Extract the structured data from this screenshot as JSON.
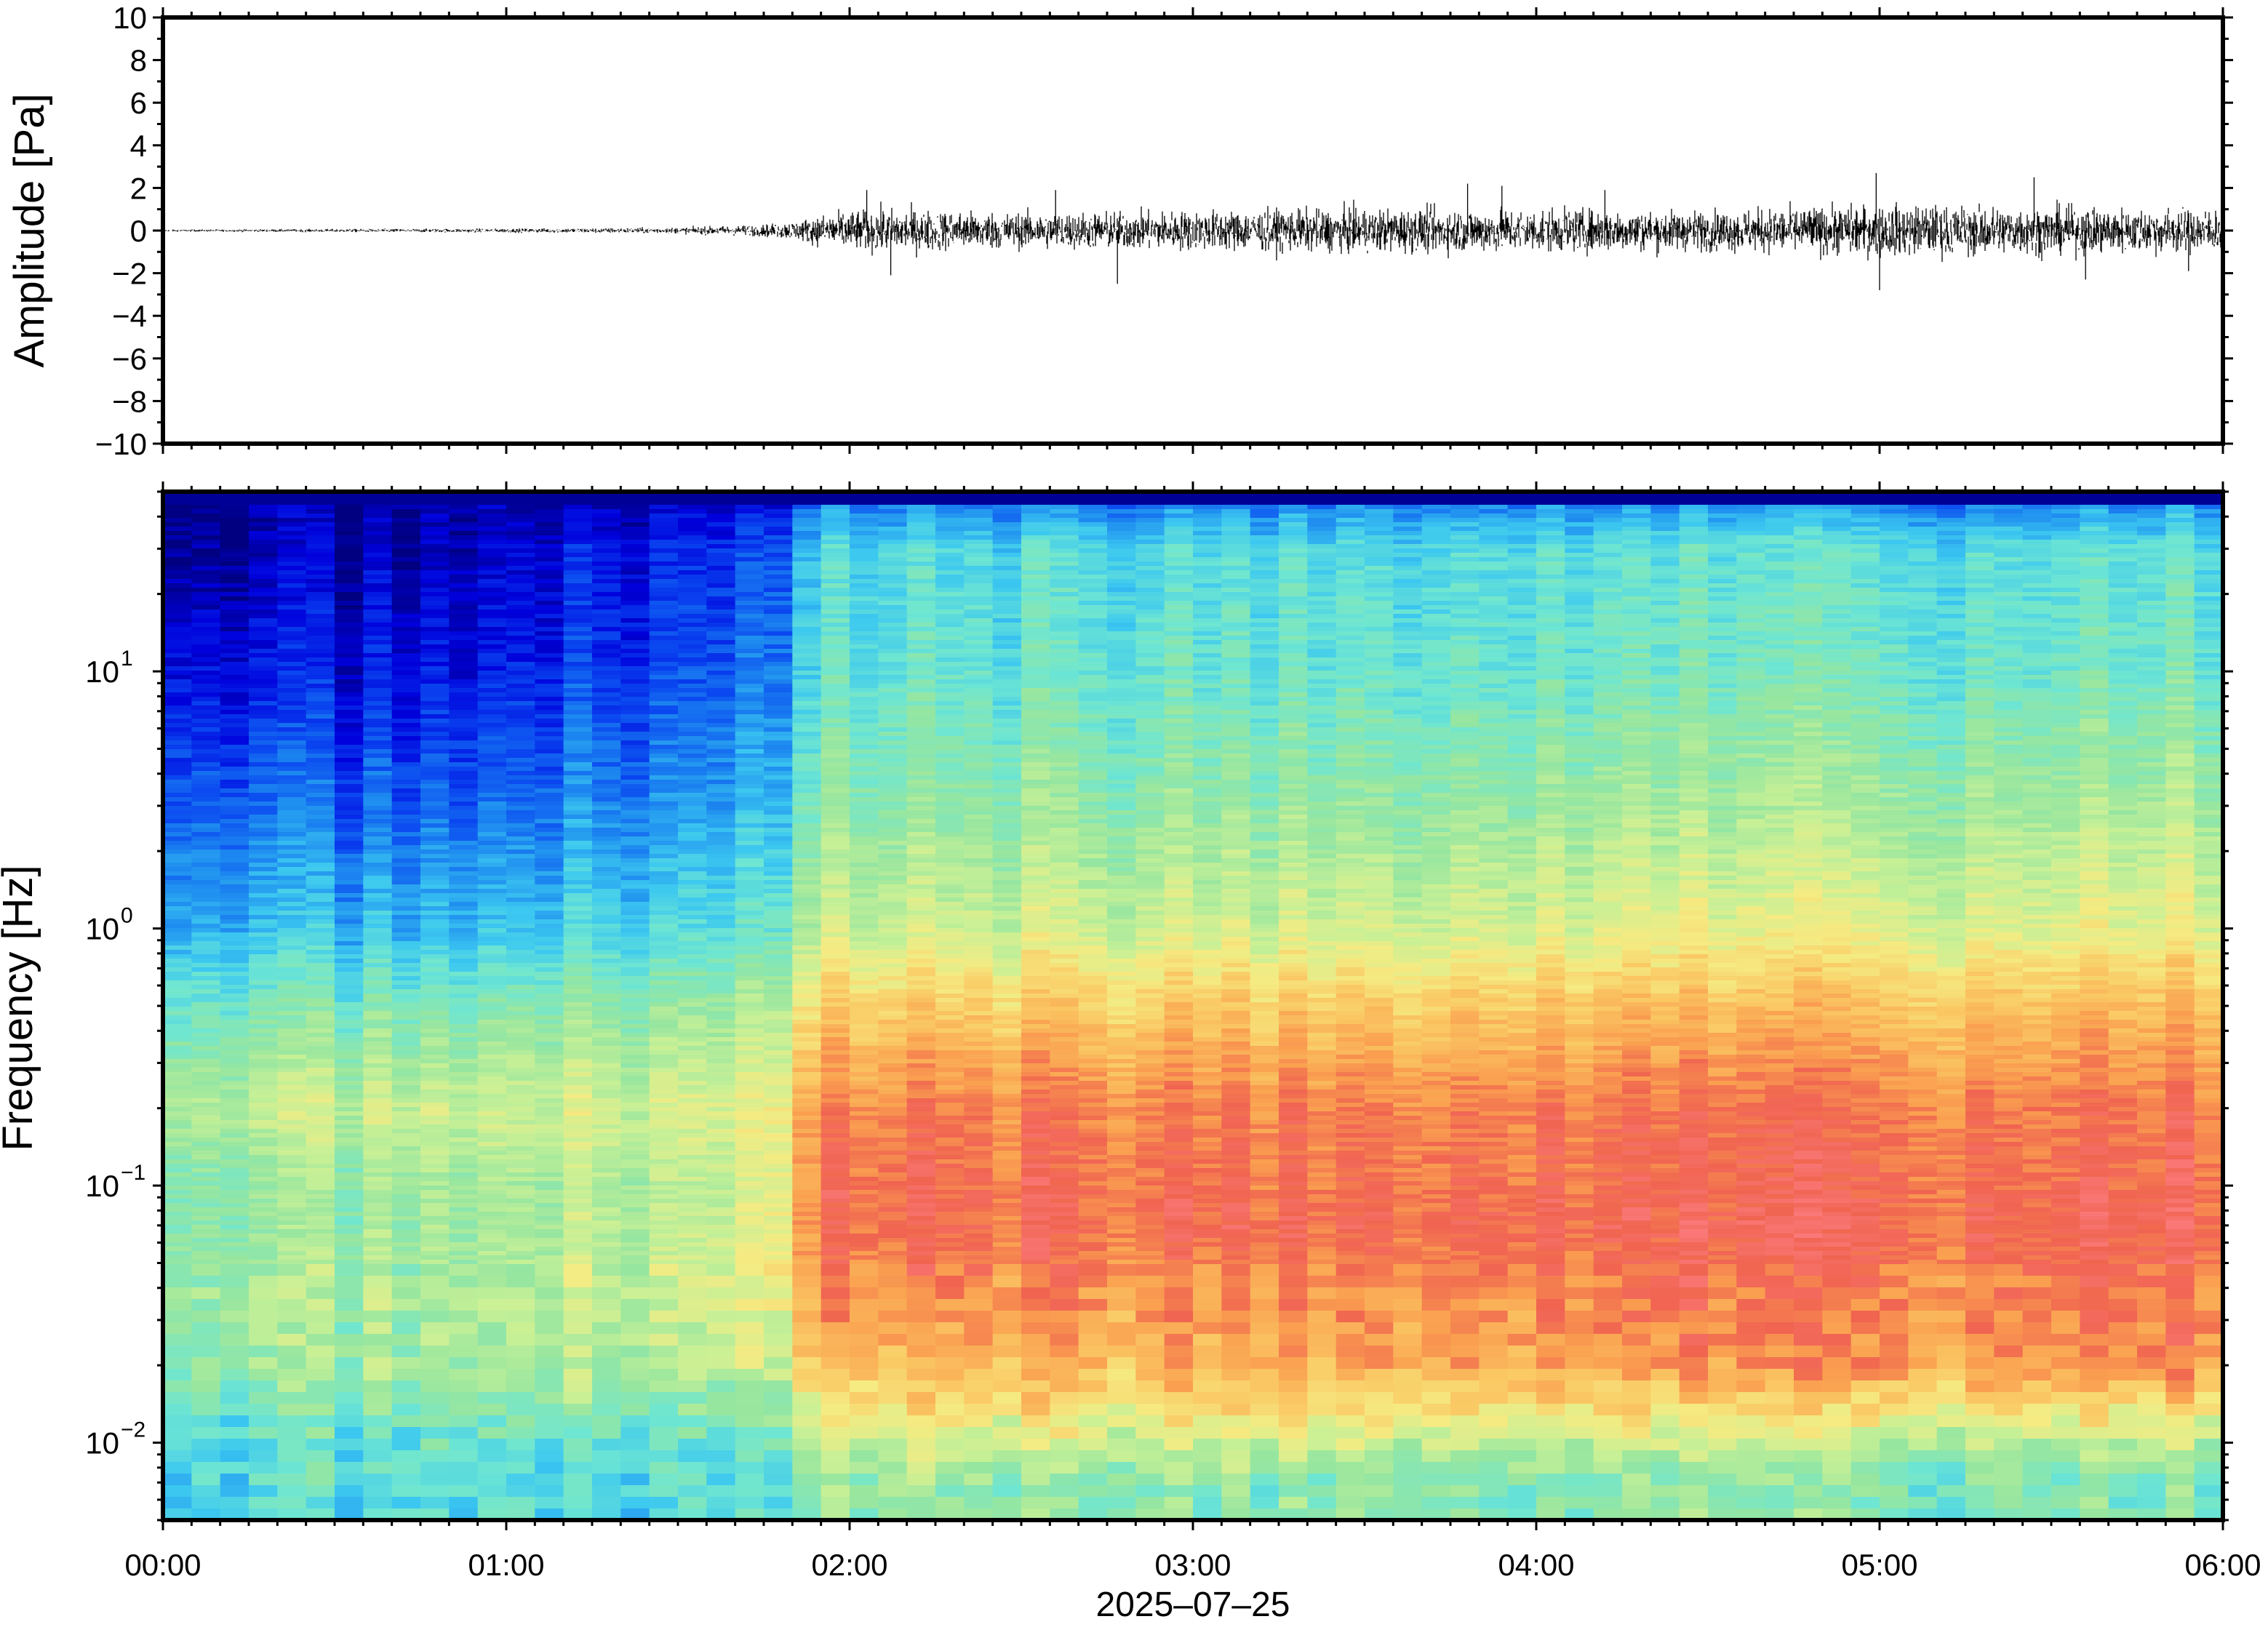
{
  "chart_data": [
    {
      "type": "line",
      "ylabel": "Amplitude [Pa]",
      "ylim": [
        -10,
        10
      ],
      "yticks": [
        10,
        8,
        6,
        4,
        2,
        0,
        -2,
        -4,
        -6,
        -8,
        -10
      ],
      "ytick_labels": [
        "10",
        "8",
        "6",
        "4",
        "2",
        "0",
        "−2",
        "−4",
        "−6",
        "−8",
        "−10"
      ],
      "xlim_hours": [
        0,
        6
      ],
      "line_color": "#000000",
      "envelope": {
        "hours": [
          0.0,
          0.5,
          1.0,
          1.5,
          1.75,
          1.85,
          1.95,
          2.1,
          2.5,
          3.0,
          3.5,
          4.0,
          4.5,
          5.0,
          5.5,
          6.0
        ],
        "amplitude": [
          0.05,
          0.08,
          0.1,
          0.15,
          0.3,
          0.5,
          0.9,
          1.1,
          0.9,
          1.0,
          1.1,
          1.1,
          1.0,
          1.3,
          1.2,
          1.1
        ]
      },
      "peaks": [
        {
          "hour": 2.05,
          "value": 1.9
        },
        {
          "hour": 2.12,
          "value": -2.1
        },
        {
          "hour": 2.6,
          "value": 1.9
        },
        {
          "hour": 2.78,
          "value": -2.5
        },
        {
          "hour": 3.8,
          "value": 2.2
        },
        {
          "hour": 3.9,
          "value": 2.1
        },
        {
          "hour": 4.2,
          "value": 1.9
        },
        {
          "hour": 5.0,
          "value": -2.8
        },
        {
          "hour": 4.99,
          "value": 2.7
        },
        {
          "hour": 5.45,
          "value": 2.5
        },
        {
          "hour": 5.6,
          "value": -2.3
        },
        {
          "hour": 5.9,
          "value": -1.9
        }
      ]
    },
    {
      "type": "heatmap",
      "ylabel": "Frequency [Hz]",
      "xlabel": "2025–07–25",
      "yscale": "log",
      "ylim_hz": [
        0.005,
        50
      ],
      "yticks_hz": [
        0.01,
        0.1,
        1,
        10
      ],
      "ytick_labels": [
        {
          "base": "10",
          "exp": "−2"
        },
        {
          "base": "10",
          "exp": "−1"
        },
        {
          "base": "10",
          "exp": "0"
        },
        {
          "base": "10",
          "exp": "1"
        }
      ],
      "xticks_hours": [
        0,
        1,
        2,
        3,
        4,
        5,
        6
      ],
      "xtick_labels": [
        "00:00",
        "01:00",
        "02:00",
        "03:00",
        "04:00",
        "05:00",
        "06:00"
      ],
      "colormap": [
        "#000080",
        "#0000dc",
        "#0a46f0",
        "#1e8cf0",
        "#3cc8f0",
        "#6ee6d2",
        "#96e6a0",
        "#c8f096",
        "#f5eb82",
        "#fac864",
        "#faa050",
        "#f06450",
        "#fa7878"
      ],
      "n_time_columns": 72,
      "profile_hours": [
        0,
        0.75,
        1.75,
        1.9,
        3.0,
        6.0
      ],
      "profile_freqs_hz": [
        0.007,
        0.01,
        0.02,
        0.04,
        0.07,
        0.1,
        0.2,
        0.5,
        1,
        3,
        10,
        30,
        45
      ],
      "profile_levels": [
        [
          0.4,
          0.4,
          0.52,
          0.54,
          0.52,
          0.5,
          0.58,
          0.46,
          0.34,
          0.24,
          0.14,
          0.06,
          0.05
        ],
        [
          0.38,
          0.4,
          0.5,
          0.52,
          0.5,
          0.5,
          0.58,
          0.44,
          0.3,
          0.18,
          0.08,
          0.03,
          0.02
        ],
        [
          0.4,
          0.44,
          0.58,
          0.64,
          0.62,
          0.6,
          0.64,
          0.54,
          0.42,
          0.32,
          0.22,
          0.17,
          0.1
        ],
        [
          0.5,
          0.6,
          0.76,
          0.86,
          0.9,
          0.9,
          0.86,
          0.72,
          0.58,
          0.48,
          0.4,
          0.36,
          0.22
        ],
        [
          0.48,
          0.6,
          0.8,
          0.86,
          0.92,
          0.9,
          0.88,
          0.74,
          0.6,
          0.5,
          0.42,
          0.38,
          0.24
        ],
        [
          0.46,
          0.56,
          0.86,
          0.9,
          0.94,
          0.92,
          0.9,
          0.78,
          0.64,
          0.54,
          0.44,
          0.4,
          0.26
        ]
      ]
    }
  ]
}
